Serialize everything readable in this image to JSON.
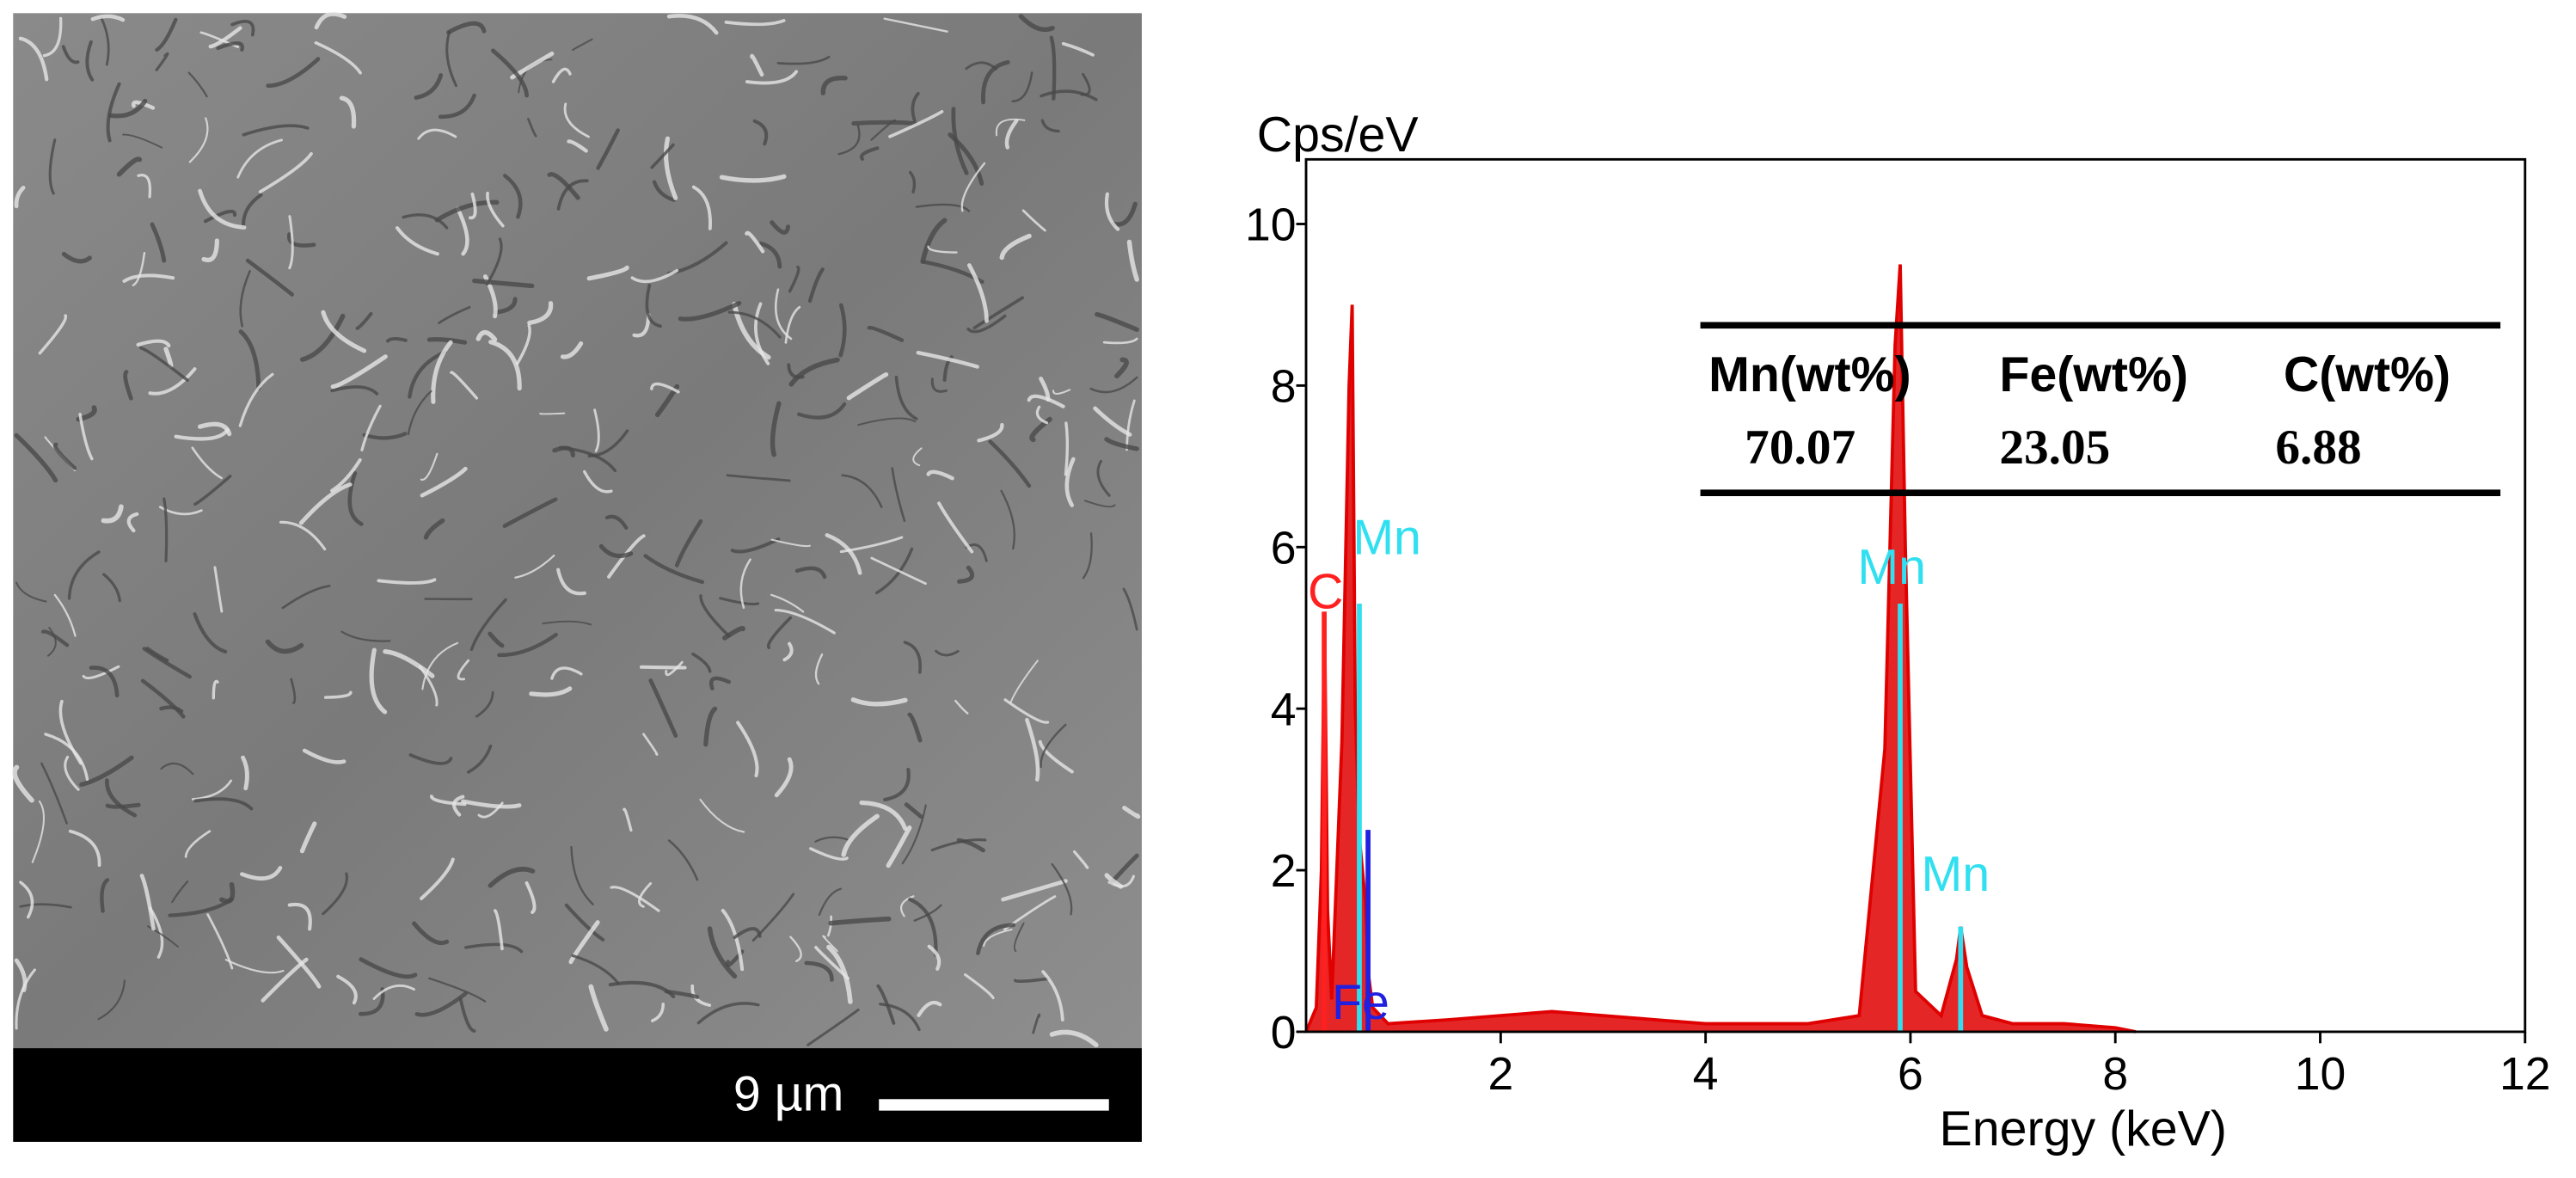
{
  "image_panel": {
    "scale_bar_label": "9 µm"
  },
  "chart_data": {
    "type": "line",
    "y_label": "Cps/eV",
    "x_label": "Energy (keV)",
    "x": [
      0.1,
      0.2,
      0.25,
      0.28,
      0.31,
      0.35,
      0.45,
      0.52,
      0.55,
      0.58,
      0.62,
      0.68,
      0.71,
      0.75,
      0.9,
      1.5,
      2,
      2.5,
      3,
      3.5,
      4,
      4.5,
      5,
      5.5,
      5.75,
      5.85,
      5.9,
      5.95,
      6.05,
      6.3,
      6.45,
      6.49,
      6.55,
      6.7,
      7,
      7.5,
      8,
      8.2
    ],
    "values": [
      0,
      0.3,
      2,
      5.2,
      1.5,
      0.4,
      3.6,
      8.0,
      9.0,
      4.0,
      2.4,
      1.6,
      0.7,
      0.3,
      0.1,
      0.15,
      0.2,
      0.25,
      0.2,
      0.15,
      0.1,
      0.1,
      0.1,
      0.2,
      3.5,
      8.5,
      9.5,
      6,
      0.5,
      0.2,
      0.9,
      1.3,
      0.8,
      0.2,
      0.1,
      0.1,
      0.05,
      0
    ],
    "color": "#e00000",
    "xlim": [
      0.1,
      12
    ],
    "ylim": [
      0,
      10.8
    ],
    "xticks": [
      2,
      4,
      6,
      8,
      10,
      12
    ],
    "yticks": [
      0,
      2,
      4,
      6,
      8,
      10
    ],
    "markers": [
      {
        "label": "C",
        "color": "#ff2020",
        "energy": 0.277,
        "height": 5.2
      },
      {
        "label": "Mn",
        "color": "#30e0f0",
        "energy": 0.62,
        "height": 5.3
      },
      {
        "label": "Fe",
        "color": "#2020e0",
        "energy": 0.705,
        "height": 2.5
      },
      {
        "label": "Mn",
        "color": "#30e0f0",
        "energy": 5.9,
        "height": 5.3
      },
      {
        "label": "Mn",
        "color": "#30e0f0",
        "energy": 6.49,
        "height": 1.3
      }
    ]
  },
  "table": {
    "header": [
      "Mn(wt%)",
      "Fe(wt%)",
      "C(wt%)"
    ],
    "rows": [
      [
        "70.07",
        "23.05",
        "6.88"
      ]
    ]
  }
}
